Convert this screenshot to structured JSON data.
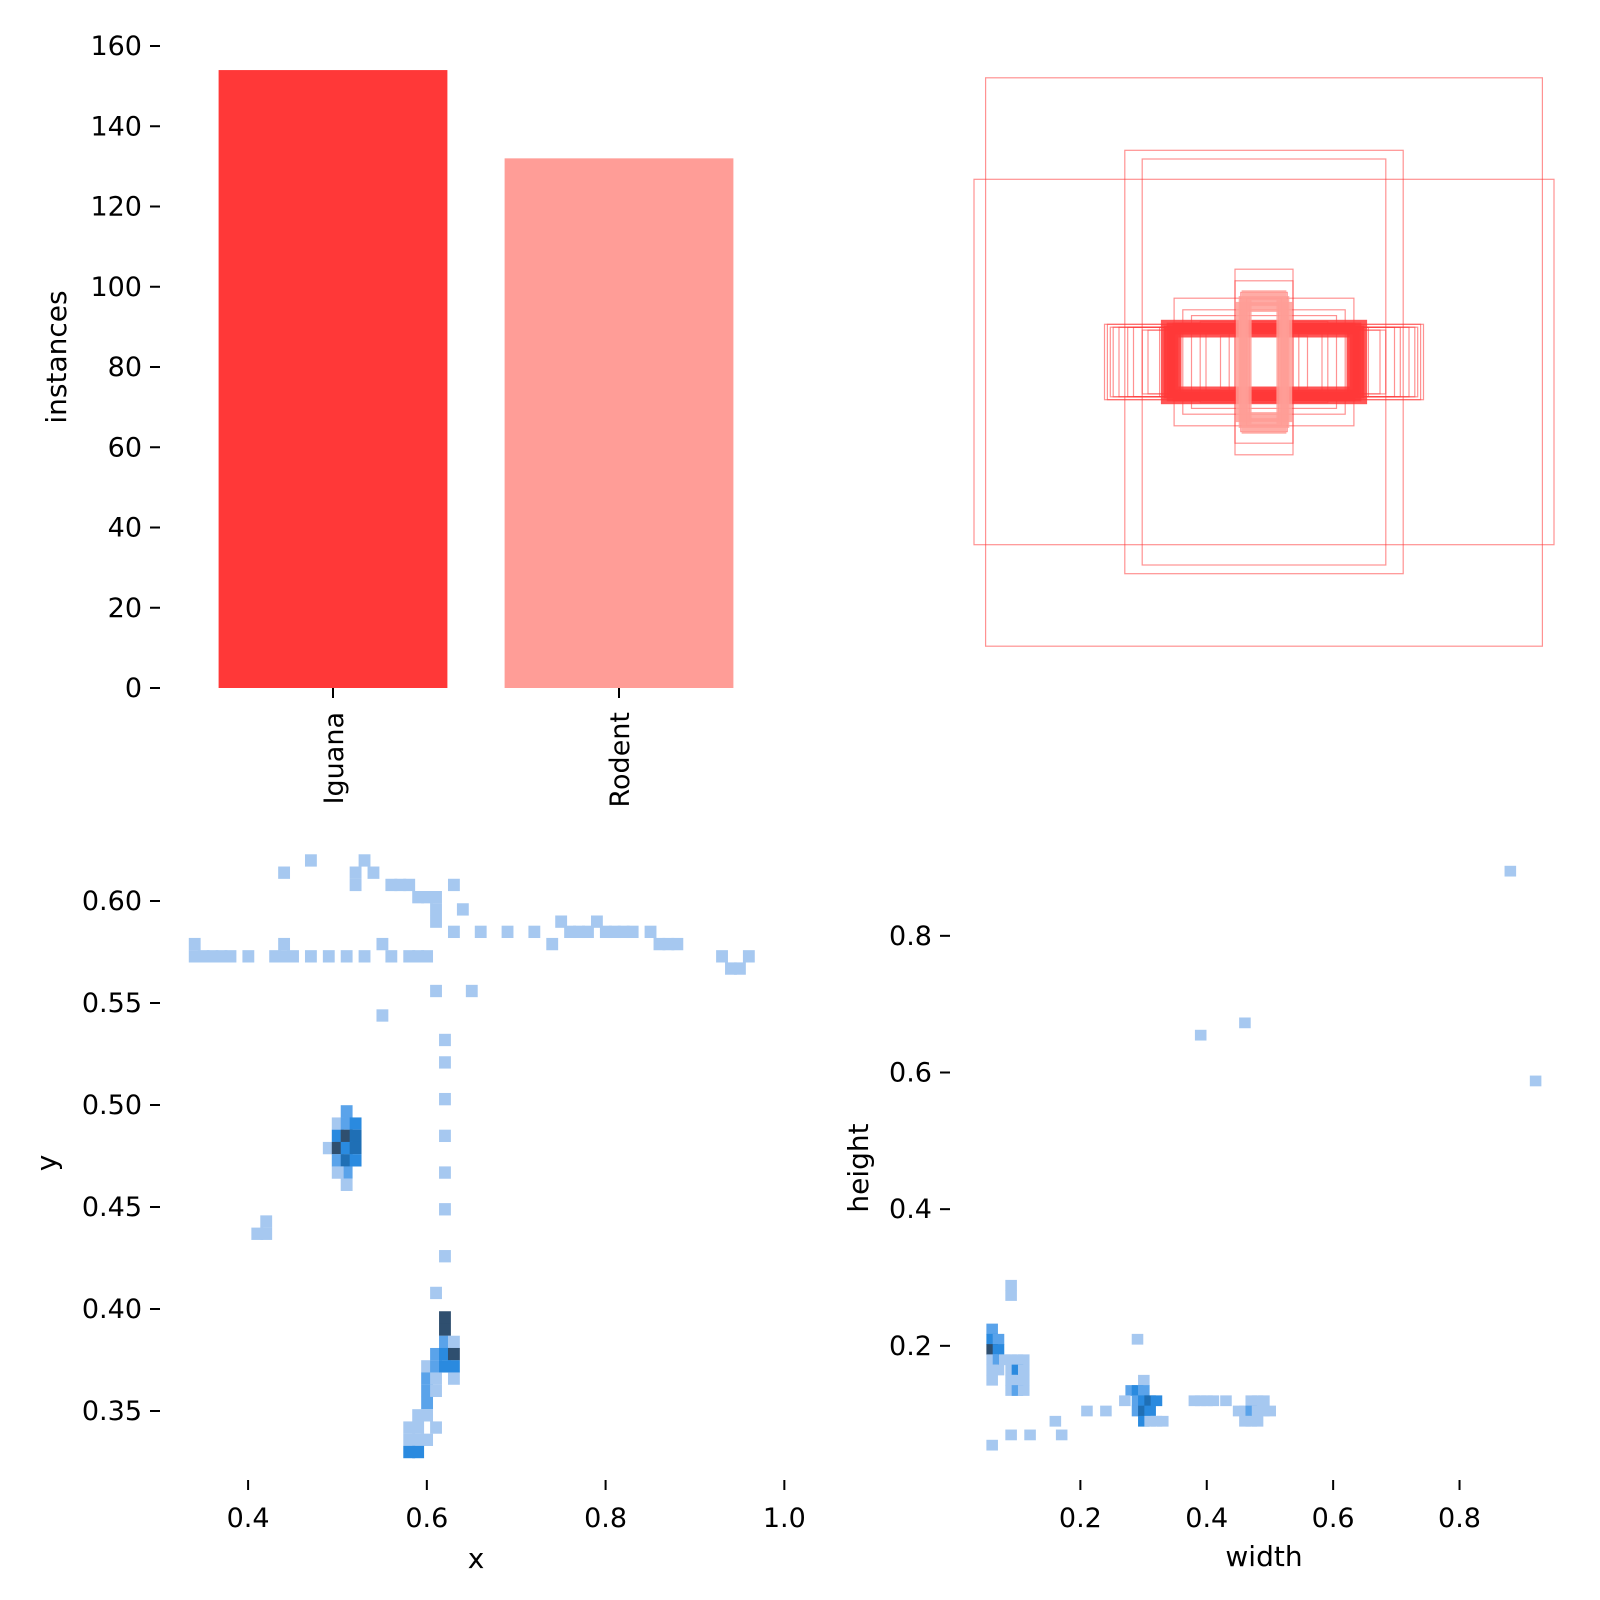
{
  "chart_data": [
    {
      "type": "bar",
      "categories": [
        "Iguana",
        "Rodent"
      ],
      "values": [
        154,
        132
      ],
      "colors": [
        "#ff3838",
        "#ff9d97"
      ],
      "ylabel": "instances",
      "xlabel": "",
      "ylim": [
        0,
        160
      ],
      "yticks": [
        "0",
        "20",
        "40",
        "60",
        "80",
        "100",
        "120",
        "140",
        "160"
      ],
      "grid": false
    },
    {
      "type": "scatter",
      "description": "overlay of labeled bounding boxes centered on the image",
      "box_color": "#ff3838",
      "boxes_wh": [
        [
          0.96,
          0.98
        ],
        [
          1.0,
          0.63
        ],
        [
          0.48,
          0.73
        ],
        [
          0.42,
          0.7
        ],
        [
          0.1,
          0.32
        ],
        [
          0.1,
          0.28
        ],
        [
          0.08,
          0.24
        ],
        [
          0.06,
          0.22
        ],
        [
          0.05,
          0.2
        ],
        [
          0.31,
          0.22
        ],
        [
          0.28,
          0.18
        ],
        [
          0.25,
          0.16
        ],
        [
          0.22,
          0.14
        ],
        [
          0.55,
          0.13
        ],
        [
          0.54,
          0.13
        ],
        [
          0.53,
          0.12
        ],
        [
          0.52,
          0.12
        ],
        [
          0.5,
          0.12
        ],
        [
          0.47,
          0.12
        ],
        [
          0.45,
          0.12
        ],
        [
          0.42,
          0.11
        ],
        [
          0.4,
          0.11
        ],
        [
          0.36,
          0.12
        ],
        [
          0.34,
          0.12
        ],
        [
          0.32,
          0.11
        ],
        [
          0.3,
          0.11
        ],
        [
          0.29,
          0.1
        ],
        [
          0.2,
          0.1
        ],
        [
          0.15,
          0.09
        ],
        [
          0.12,
          0.12
        ]
      ],
      "thick_boxes_wh": [
        [
          0.34,
          0.13
        ],
        [
          0.33,
          0.11
        ],
        [
          0.32,
          0.12
        ],
        [
          0.31,
          0.1
        ],
        [
          0.3,
          0.12
        ]
      ],
      "light_boxes_wh": [
        [
          0.06,
          0.23
        ],
        [
          0.07,
          0.21
        ],
        [
          0.08,
          0.19
        ]
      ]
    },
    {
      "type": "heatmap",
      "xlabel": "x",
      "ylabel": "y",
      "xlim": [
        0.335,
        0.975
      ],
      "ylim": [
        0.325,
        0.625
      ],
      "xticks": [
        "0.4",
        "0.6",
        "0.8",
        "1.0"
      ],
      "yticks": [
        "0.35",
        "0.40",
        "0.45",
        "0.50",
        "0.55",
        "0.60"
      ],
      "colors": [
        "#a6c8f0",
        "#5aa3ea",
        "#2a8adf",
        "#1f6fb5",
        "#2f4f6f"
      ],
      "cells": [
        [
          0.34,
          0.579,
          0
        ],
        [
          0.34,
          0.573,
          0
        ],
        [
          0.35,
          0.573,
          0
        ],
        [
          0.36,
          0.573,
          0
        ],
        [
          0.37,
          0.573,
          0
        ],
        [
          0.38,
          0.573,
          0
        ],
        [
          0.4,
          0.573,
          0
        ],
        [
          0.43,
          0.573,
          0
        ],
        [
          0.44,
          0.573,
          0
        ],
        [
          0.45,
          0.573,
          0
        ],
        [
          0.47,
          0.573,
          0
        ],
        [
          0.49,
          0.573,
          0
        ],
        [
          0.51,
          0.573,
          0
        ],
        [
          0.53,
          0.573,
          0
        ],
        [
          0.56,
          0.573,
          0
        ],
        [
          0.58,
          0.573,
          0
        ],
        [
          0.59,
          0.573,
          0
        ],
        [
          0.6,
          0.573,
          0
        ],
        [
          0.44,
          0.579,
          0
        ],
        [
          0.55,
          0.579,
          0
        ],
        [
          0.44,
          0.614,
          0
        ],
        [
          0.47,
          0.62,
          0
        ],
        [
          0.53,
          0.62,
          0
        ],
        [
          0.54,
          0.614,
          0
        ],
        [
          0.52,
          0.608,
          0
        ],
        [
          0.52,
          0.614,
          0
        ],
        [
          0.56,
          0.608,
          0
        ],
        [
          0.57,
          0.608,
          0
        ],
        [
          0.58,
          0.608,
          0
        ],
        [
          0.59,
          0.602,
          0
        ],
        [
          0.6,
          0.602,
          0
        ],
        [
          0.61,
          0.596,
          0
        ],
        [
          0.61,
          0.59,
          0
        ],
        [
          0.61,
          0.602,
          0
        ],
        [
          0.63,
          0.608,
          0
        ],
        [
          0.64,
          0.596,
          0
        ],
        [
          0.63,
          0.585,
          0
        ],
        [
          0.66,
          0.585,
          0
        ],
        [
          0.69,
          0.585,
          0
        ],
        [
          0.72,
          0.585,
          0
        ],
        [
          0.75,
          0.59,
          0
        ],
        [
          0.76,
          0.585,
          0
        ],
        [
          0.77,
          0.585,
          0
        ],
        [
          0.78,
          0.585,
          0
        ],
        [
          0.79,
          0.59,
          0
        ],
        [
          0.8,
          0.585,
          0
        ],
        [
          0.81,
          0.585,
          0
        ],
        [
          0.82,
          0.585,
          0
        ],
        [
          0.83,
          0.585,
          0
        ],
        [
          0.85,
          0.585,
          0
        ],
        [
          0.86,
          0.579,
          0
        ],
        [
          0.87,
          0.579,
          0
        ],
        [
          0.88,
          0.579,
          0
        ],
        [
          0.74,
          0.579,
          0
        ],
        [
          0.93,
          0.573,
          0
        ],
        [
          0.94,
          0.567,
          0
        ],
        [
          0.95,
          0.567,
          0
        ],
        [
          0.96,
          0.573,
          0
        ],
        [
          0.61,
          0.556,
          0
        ],
        [
          0.65,
          0.556,
          0
        ],
        [
          0.55,
          0.544,
          0
        ],
        [
          0.62,
          0.532,
          0
        ],
        [
          0.62,
          0.521,
          0
        ],
        [
          0.62,
          0.503,
          0
        ],
        [
          0.62,
          0.485,
          0
        ],
        [
          0.62,
          0.467,
          0
        ],
        [
          0.62,
          0.449,
          0
        ],
        [
          0.62,
          0.426,
          0
        ],
        [
          0.61,
          0.408,
          0
        ],
        [
          0.51,
          0.497,
          1
        ],
        [
          0.5,
          0.491,
          0
        ],
        [
          0.51,
          0.491,
          1
        ],
        [
          0.52,
          0.491,
          2
        ],
        [
          0.5,
          0.485,
          2
        ],
        [
          0.51,
          0.485,
          4
        ],
        [
          0.52,
          0.485,
          3
        ],
        [
          0.49,
          0.479,
          0
        ],
        [
          0.5,
          0.479,
          4
        ],
        [
          0.51,
          0.479,
          2
        ],
        [
          0.52,
          0.479,
          3
        ],
        [
          0.5,
          0.473,
          1
        ],
        [
          0.51,
          0.473,
          3
        ],
        [
          0.52,
          0.473,
          2
        ],
        [
          0.51,
          0.467,
          1
        ],
        [
          0.5,
          0.467,
          0
        ],
        [
          0.51,
          0.461,
          0
        ],
        [
          0.42,
          0.443,
          0
        ],
        [
          0.41,
          0.437,
          0
        ],
        [
          0.42,
          0.437,
          0
        ],
        [
          0.62,
          0.396,
          4
        ],
        [
          0.62,
          0.39,
          4
        ],
        [
          0.62,
          0.384,
          1
        ],
        [
          0.63,
          0.384,
          0
        ],
        [
          0.61,
          0.378,
          1
        ],
        [
          0.62,
          0.378,
          2
        ],
        [
          0.63,
          0.378,
          4
        ],
        [
          0.6,
          0.372,
          0
        ],
        [
          0.61,
          0.372,
          1
        ],
        [
          0.62,
          0.372,
          2
        ],
        [
          0.63,
          0.372,
          2
        ],
        [
          0.6,
          0.366,
          1
        ],
        [
          0.61,
          0.366,
          0
        ],
        [
          0.63,
          0.366,
          0
        ],
        [
          0.6,
          0.36,
          1
        ],
        [
          0.61,
          0.36,
          0
        ],
        [
          0.6,
          0.354,
          1
        ],
        [
          0.59,
          0.348,
          0
        ],
        [
          0.6,
          0.348,
          0
        ],
        [
          0.59,
          0.342,
          0
        ],
        [
          0.61,
          0.342,
          0
        ],
        [
          0.58,
          0.342,
          0
        ],
        [
          0.58,
          0.336,
          0
        ],
        [
          0.59,
          0.336,
          0
        ],
        [
          0.6,
          0.336,
          0
        ],
        [
          0.58,
          0.33,
          2
        ],
        [
          0.59,
          0.33,
          2
        ]
      ],
      "cell_size": [
        0.0127,
        0.0058
      ]
    },
    {
      "type": "heatmap",
      "xlabel": "width",
      "ylabel": "height",
      "xlim": [
        0.0,
        0.94
      ],
      "ylim": [
        0.03,
        0.93
      ],
      "xticks": [
        "0.2",
        "0.4",
        "0.6",
        "0.8"
      ],
      "yticks": [
        "0.2",
        "0.4",
        "0.6",
        "0.8"
      ],
      "colors": [
        "#a6c8f0",
        "#5aa3ea",
        "#2a8adf",
        "#1f6fb5",
        "#2f4f6f"
      ],
      "cells": [
        [
          0.88,
          0.895,
          0
        ],
        [
          0.46,
          0.673,
          0
        ],
        [
          0.39,
          0.655,
          0
        ],
        [
          0.92,
          0.588,
          0
        ],
        [
          0.09,
          0.289,
          0
        ],
        [
          0.09,
          0.274,
          0
        ],
        [
          0.06,
          0.225,
          1
        ],
        [
          0.06,
          0.21,
          2
        ],
        [
          0.07,
          0.21,
          1
        ],
        [
          0.06,
          0.195,
          4
        ],
        [
          0.07,
          0.195,
          2
        ],
        [
          0.06,
          0.18,
          0
        ],
        [
          0.07,
          0.18,
          1
        ],
        [
          0.08,
          0.18,
          0
        ],
        [
          0.09,
          0.18,
          0
        ],
        [
          0.1,
          0.18,
          0
        ],
        [
          0.11,
          0.18,
          0
        ],
        [
          0.06,
          0.165,
          0
        ],
        [
          0.07,
          0.165,
          0
        ],
        [
          0.09,
          0.165,
          0
        ],
        [
          0.1,
          0.165,
          2
        ],
        [
          0.11,
          0.165,
          0
        ],
        [
          0.06,
          0.15,
          0
        ],
        [
          0.09,
          0.15,
          0
        ],
        [
          0.1,
          0.15,
          0
        ],
        [
          0.11,
          0.15,
          0
        ],
        [
          0.09,
          0.135,
          0
        ],
        [
          0.1,
          0.135,
          1
        ],
        [
          0.11,
          0.135,
          0
        ],
        [
          0.29,
          0.21,
          0
        ],
        [
          0.3,
          0.15,
          0
        ],
        [
          0.28,
          0.135,
          1
        ],
        [
          0.29,
          0.135,
          2
        ],
        [
          0.3,
          0.135,
          1
        ],
        [
          0.27,
          0.12,
          0
        ],
        [
          0.29,
          0.12,
          1
        ],
        [
          0.3,
          0.12,
          2
        ],
        [
          0.31,
          0.12,
          3
        ],
        [
          0.32,
          0.12,
          2
        ],
        [
          0.38,
          0.12,
          0
        ],
        [
          0.39,
          0.12,
          0
        ],
        [
          0.4,
          0.12,
          0
        ],
        [
          0.41,
          0.12,
          0
        ],
        [
          0.43,
          0.12,
          0
        ],
        [
          0.47,
          0.12,
          0
        ],
        [
          0.48,
          0.12,
          0
        ],
        [
          0.49,
          0.12,
          0
        ],
        [
          0.21,
          0.105,
          0
        ],
        [
          0.24,
          0.105,
          0
        ],
        [
          0.29,
          0.105,
          1
        ],
        [
          0.3,
          0.105,
          3
        ],
        [
          0.31,
          0.105,
          2
        ],
        [
          0.45,
          0.105,
          0
        ],
        [
          0.46,
          0.105,
          0
        ],
        [
          0.47,
          0.105,
          1
        ],
        [
          0.48,
          0.105,
          0
        ],
        [
          0.49,
          0.105,
          0
        ],
        [
          0.5,
          0.105,
          0
        ],
        [
          0.16,
          0.09,
          0
        ],
        [
          0.3,
          0.09,
          2
        ],
        [
          0.31,
          0.09,
          0
        ],
        [
          0.32,
          0.09,
          0
        ],
        [
          0.33,
          0.09,
          0
        ],
        [
          0.46,
          0.09,
          0
        ],
        [
          0.47,
          0.09,
          0
        ],
        [
          0.48,
          0.09,
          0
        ],
        [
          0.09,
          0.07,
          0
        ],
        [
          0.12,
          0.07,
          0
        ],
        [
          0.17,
          0.07,
          0
        ],
        [
          0.06,
          0.055,
          0
        ]
      ],
      "cell_size": [
        0.0175,
        0.015
      ]
    }
  ]
}
